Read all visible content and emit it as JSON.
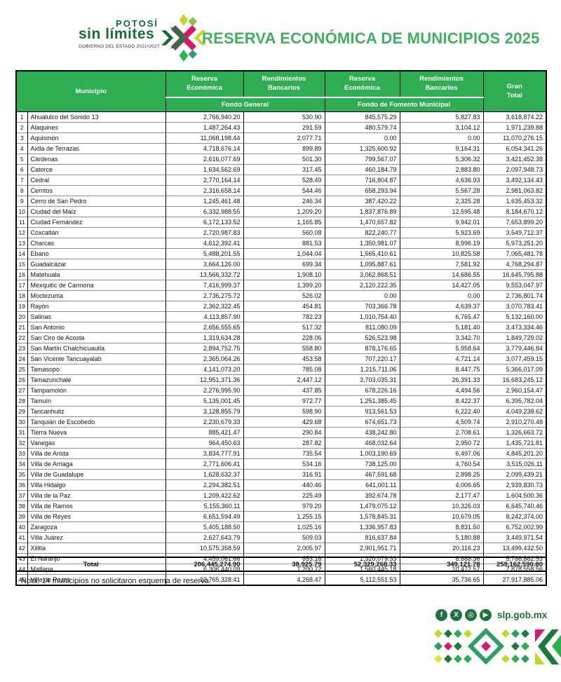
{
  "header": {
    "logo": {
      "line1": "POTOSÍ",
      "line2": "sin límites",
      "line3": "GOBIERNO DEL ESTADO 2021•2027"
    },
    "title": "RESERVA ECONÓMICA DE MUNICIPIOS 2025"
  },
  "table": {
    "columns": {
      "municipio": "Municipio",
      "reserva_economica": "Reserva Económica",
      "rendimientos_bancarios": "Rendimientos Bancarios",
      "gran_total": "Gran Total",
      "fondo_general": "Fondo General",
      "fondo_fomento": "Fondo de Fomento Municipal"
    },
    "rows": [
      {
        "n": 1,
        "municipio": "Ahualulco del Sonido 13",
        "fg_reserva": "2,766,940.20",
        "fg_rend": "530.90",
        "ffm_reserva": "845,575.29",
        "ffm_rend": "5,827.83",
        "gran_total": "3,618,874.22"
      },
      {
        "n": 2,
        "municipio": "Alaquines",
        "fg_reserva": "1,487,264.43",
        "fg_rend": "291.59",
        "ffm_reserva": "480,579.74",
        "ffm_rend": "3,104.12",
        "gran_total": "1,971,239.88"
      },
      {
        "n": 3,
        "municipio": "Aquismón",
        "fg_reserva": "11,068,198.44",
        "fg_rend": "2,077.71",
        "ffm_reserva": "0.00",
        "ffm_rend": "0.00",
        "gran_total": "11,070,276.15"
      },
      {
        "n": 4,
        "municipio": "Axtla de Terrazas",
        "fg_reserva": "4,718,676.14",
        "fg_rend": "899.89",
        "ffm_reserva": "1,325,600.92",
        "ffm_rend": "9,164.31",
        "gran_total": "6,054,341.26"
      },
      {
        "n": 5,
        "municipio": "Cárdenas",
        "fg_reserva": "2,616,077.69",
        "fg_rend": "501.30",
        "ffm_reserva": "799,567.07",
        "ffm_rend": "5,306.32",
        "gran_total": "3,421,452.38"
      },
      {
        "n": 6,
        "municipio": "Catorce",
        "fg_reserva": "1,634,562.69",
        "fg_rend": "317.45",
        "ffm_reserva": "460,184.79",
        "ffm_rend": "2,883.80",
        "gran_total": "2,097,948.73"
      },
      {
        "n": 7,
        "municipio": "Cedral",
        "fg_reserva": "2,770,164.14",
        "fg_rend": "528.49",
        "ffm_reserva": "716,804.87",
        "ffm_rend": "4,636.93",
        "gran_total": "3,492,134.43"
      },
      {
        "n": 8,
        "municipio": "Cerritos",
        "fg_reserva": "2,316,658.14",
        "fg_rend": "544.46",
        "ffm_reserva": "658,293.94",
        "ffm_rend": "5,567.28",
        "gran_total": "2,981,063.82"
      },
      {
        "n": 9,
        "municipio": "Cerro de San Pedro",
        "fg_reserva": "1,245,461.48",
        "fg_rend": "246.34",
        "ffm_reserva": "387,420.22",
        "ffm_rend": "2,325.28",
        "gran_total": "1,635,453.32"
      },
      {
        "n": 10,
        "municipio": "Ciudad del Maíz",
        "fg_reserva": "6,332,988.55",
        "fg_rend": "1,209.20",
        "ffm_reserva": "1,837,876.89",
        "ffm_rend": "12,595.48",
        "gran_total": "8,184,670.12"
      },
      {
        "n": 11,
        "municipio": "Ciudad Fernández",
        "fg_reserva": "6,172,133.52",
        "fg_rend": "1,165.85",
        "ffm_reserva": "1,470,657.82",
        "ffm_rend": "9,942.01",
        "gran_total": "7,653,899.20"
      },
      {
        "n": 12,
        "municipio": "Coxcatlán",
        "fg_reserva": "2,720,987.83",
        "fg_rend": "560.08",
        "ffm_reserva": "822,240.77",
        "ffm_rend": "5,923.69",
        "gran_total": "3,549,712.37"
      },
      {
        "n": 13,
        "municipio": "Charcas",
        "fg_reserva": "4,612,392.41",
        "fg_rend": "881.53",
        "ffm_reserva": "1,350,981.07",
        "ffm_rend": "8,996.19",
        "gran_total": "5,973,251.20"
      },
      {
        "n": 14,
        "municipio": "Ebano",
        "fg_reserva": "5,488,201.55",
        "fg_rend": "1,044.04",
        "ffm_reserva": "1,565,410.61",
        "ffm_rend": "10,825.58",
        "gran_total": "7,065,481.78"
      },
      {
        "n": 15,
        "municipio": "Guadalcázar",
        "fg_reserva": "3,664,126.00",
        "fg_rend": "699.34",
        "ffm_reserva": "1,095,887.61",
        "ffm_rend": "7,581.92",
        "gran_total": "4,768,294.87"
      },
      {
        "n": 16,
        "municipio": "Matehuala",
        "fg_reserva": "13,566,332.72",
        "fg_rend": "1,908.10",
        "ffm_reserva": "3,062,868.51",
        "ffm_rend": "14,686.55",
        "gran_total": "16,645,795.88"
      },
      {
        "n": 17,
        "municipio": "Mexquitic de Carmona",
        "fg_reserva": "7,416,999.37",
        "fg_rend": "1,399.20",
        "ffm_reserva": "2,120,222.35",
        "ffm_rend": "14,427.05",
        "gran_total": "9,553,047.97"
      },
      {
        "n": 18,
        "municipio": "Moctezuma",
        "fg_reserva": "2,736,275.72",
        "fg_rend": "526.02",
        "ffm_reserva": "0.00",
        "ffm_rend": "0.00",
        "gran_total": "2,736,801.74"
      },
      {
        "n": 19,
        "municipio": "Rayón",
        "fg_reserva": "2,362,322.45",
        "fg_rend": "454.81",
        "ffm_reserva": "703,366.78",
        "ffm_rend": "4,639.37",
        "gran_total": "3,070,783.41"
      },
      {
        "n": 20,
        "municipio": "Salinas",
        "fg_reserva": "4,113,857.90",
        "fg_rend": "782.23",
        "ffm_reserva": "1,010,754.40",
        "ffm_rend": "6,765.47",
        "gran_total": "5,132,160.00"
      },
      {
        "n": 21,
        "municipio": "San Antonio",
        "fg_reserva": "2,656,555.65",
        "fg_rend": "517.32",
        "ffm_reserva": "811,080.09",
        "ffm_rend": "5,181.40",
        "gran_total": "3,473,334.46"
      },
      {
        "n": 22,
        "municipio": "San Ciro de Acosta",
        "fg_reserva": "1,319,634.28",
        "fg_rend": "228.06",
        "ffm_reserva": "526,523.98",
        "ffm_rend": "3,342.70",
        "gran_total": "1,849,729.02"
      },
      {
        "n": 23,
        "municipio": "San Martín Chalchicuautla",
        "fg_reserva": "2,894,752.75",
        "fg_rend": "558.80",
        "ffm_reserva": "878,176.65",
        "ffm_rend": "5,958.64",
        "gran_total": "3,779,446.84"
      },
      {
        "n": 24,
        "municipio": "San Vicente Tancuayalab",
        "fg_reserva": "2,365,064.26",
        "fg_rend": "453.58",
        "ffm_reserva": "707,220.17",
        "ffm_rend": "4,721.14",
        "gran_total": "3,077,459.15"
      },
      {
        "n": 25,
        "municipio": "Tamasopo",
        "fg_reserva": "4,141,073.20",
        "fg_rend": "785.08",
        "ffm_reserva": "1,215,711.06",
        "ffm_rend": "8,447.75",
        "gran_total": "5,366,017.09"
      },
      {
        "n": 26,
        "municipio": "Tamazunchale",
        "fg_reserva": "12,951,371.36",
        "fg_rend": "2,447.12",
        "ffm_reserva": "3,703,035.31",
        "ffm_rend": "26,391.33",
        "gran_total": "16,683,245.12"
      },
      {
        "n": 27,
        "municipio": "Tampamolón",
        "fg_reserva": "2,276,995.90",
        "fg_rend": "437.85",
        "ffm_reserva": "678,226.16",
        "ffm_rend": "4,494.56",
        "gran_total": "2,960,154.47"
      },
      {
        "n": 28,
        "municipio": "Tamuín",
        "fg_reserva": "5,135,001.45",
        "fg_rend": "972.77",
        "ffm_reserva": "1,251,385.45",
        "ffm_rend": "8,422.37",
        "gran_total": "6,395,782.04"
      },
      {
        "n": 29,
        "municipio": "Tancanhuitz",
        "fg_reserva": "3,128,855.79",
        "fg_rend": "598.90",
        "ffm_reserva": "913,561.53",
        "ffm_rend": "6,222.40",
        "gran_total": "4,049,238.62"
      },
      {
        "n": 30,
        "municipio": "Tanquián de Escobedo",
        "fg_reserva": "2,230,679.33",
        "fg_rend": "429.68",
        "ffm_reserva": "674,651.73",
        "ffm_rend": "4,509.74",
        "gran_total": "2,910,270.48"
      },
      {
        "n": 31,
        "municipio": "Tierra Nueva",
        "fg_reserva": "885,421.47",
        "fg_rend": "290.84",
        "ffm_reserva": "438,242.80",
        "ffm_rend": "2,708.61",
        "gran_total": "1,326,663.72"
      },
      {
        "n": 32,
        "municipio": "Vanegas",
        "fg_reserva": "964,450.63",
        "fg_rend": "287.82",
        "ffm_reserva": "468,032.64",
        "ffm_rend": "2,950.72",
        "gran_total": "1,435,721.81"
      },
      {
        "n": 33,
        "municipio": "Villa de Arista",
        "fg_reserva": "3,834,777.91",
        "fg_rend": "735.54",
        "ffm_reserva": "1,003,190.69",
        "ffm_rend": "6,497.06",
        "gran_total": "4,845,201.20"
      },
      {
        "n": 34,
        "municipio": "Villa de Arriaga",
        "fg_reserva": "2,771,606.41",
        "fg_rend": "534.16",
        "ffm_reserva": "738,125.00",
        "ffm_rend": "4,760.54",
        "gran_total": "3,515,026.11"
      },
      {
        "n": 35,
        "municipio": "Villa de Guadalupe",
        "fg_reserva": "1,628,632.37",
        "fg_rend": "316.91",
        "ffm_reserva": "467,591.68",
        "ffm_rend": "2,898.25",
        "gran_total": "2,099,439.21"
      },
      {
        "n": 36,
        "municipio": "Villa Hidalgo",
        "fg_reserva": "2,294,382.51",
        "fg_rend": "440.46",
        "ffm_reserva": "641,001.11",
        "ffm_rend": "4,006.65",
        "gran_total": "2,939,830.73"
      },
      {
        "n": 37,
        "municipio": "Villa de la Paz",
        "fg_reserva": "1,209,422.62",
        "fg_rend": "225.49",
        "ffm_reserva": "392,674.78",
        "ffm_rend": "2,177.47",
        "gran_total": "1,604,500.36"
      },
      {
        "n": 38,
        "municipio": "Villa de Ramos",
        "fg_reserva": "5,155,360.11",
        "fg_rend": "979.20",
        "ffm_reserva": "1,479,075.12",
        "ffm_rend": "10,326.03",
        "gran_total": "6,645,740.46"
      },
      {
        "n": 39,
        "municipio": "Villa de Reyes",
        "fg_reserva": "6,651,594.49",
        "fg_rend": "1,255.15",
        "ffm_reserva": "1,578,845.31",
        "ffm_rend": "10,679.05",
        "gran_total": "8,242,374.00"
      },
      {
        "n": 40,
        "municipio": "Zaragoza",
        "fg_reserva": "5,405,188.50",
        "fg_rend": "1,025.16",
        "ffm_reserva": "1,336,957.83",
        "ffm_rend": "8,831.50",
        "gran_total": "6,752,002.99"
      },
      {
        "n": 41,
        "municipio": "Villa Juárez",
        "fg_reserva": "2,627,643.79",
        "fg_rend": "509.03",
        "ffm_reserva": "816,637.84",
        "ffm_rend": "5,180.88",
        "gran_total": "3,449,971.54"
      },
      {
        "n": 42,
        "municipio": "Xilitla",
        "fg_reserva": "10,575,358.59",
        "fg_rend": "2,005.97",
        "ffm_reserva": "2,901,951.71",
        "ffm_rend": "20,116.23",
        "gran_total": "13,499,432.50"
      },
      {
        "n": 43,
        "municipio": "El Naranjo",
        "fg_reserva": "4,459,061.66",
        "fg_rend": "853.18",
        "ffm_reserva": "1,320,079.33",
        "ffm_rend": "8,888.36",
        "gran_total": "5,788,882.53"
      },
      {
        "n": 44,
        "municipio": "Matlapa",
        "fg_reserva": "6,306,440.09",
        "fg_rend": "1,200.72",
        "ffm_reserva": "1,560,445.18",
        "ffm_rend": "10,472.57",
        "gran_total": "7,878,558.56"
      },
      {
        "n": 45,
        "municipio": "Villa de Pozos",
        "fg_reserva": "22,765,328.41",
        "fg_rend": "4,268.47",
        "ffm_reserva": "5,112,551.53",
        "ffm_rend": "35,736.65",
        "gran_total": "27,917,885.06"
      }
    ],
    "total": {
      "label": "Total",
      "fg_reserva": "206,445,274.90",
      "fg_rend": "38,925.79",
      "ffm_reserva": "52,329,268.33",
      "ffm_rend": "349,121.78",
      "gran_total": "259,162,590.80"
    }
  },
  "note": "Nota: 14 municipios no solicitaron esquema de reserva.",
  "footer": {
    "website": "slp.gob.mx",
    "social_icons": [
      {
        "name": "facebook-icon",
        "glyph": "f"
      },
      {
        "name": "x-icon",
        "glyph": "X"
      },
      {
        "name": "instagram-icon",
        "glyph": "◎"
      },
      {
        "name": "youtube-icon",
        "glyph": "▶"
      }
    ]
  },
  "colors": {
    "header_green": "#2fad52",
    "title_green": "#41ae61",
    "logo_dark_green": "#156b39",
    "accent_pink": "#d6176b",
    "accent_yellow_green": "#c6d630"
  }
}
